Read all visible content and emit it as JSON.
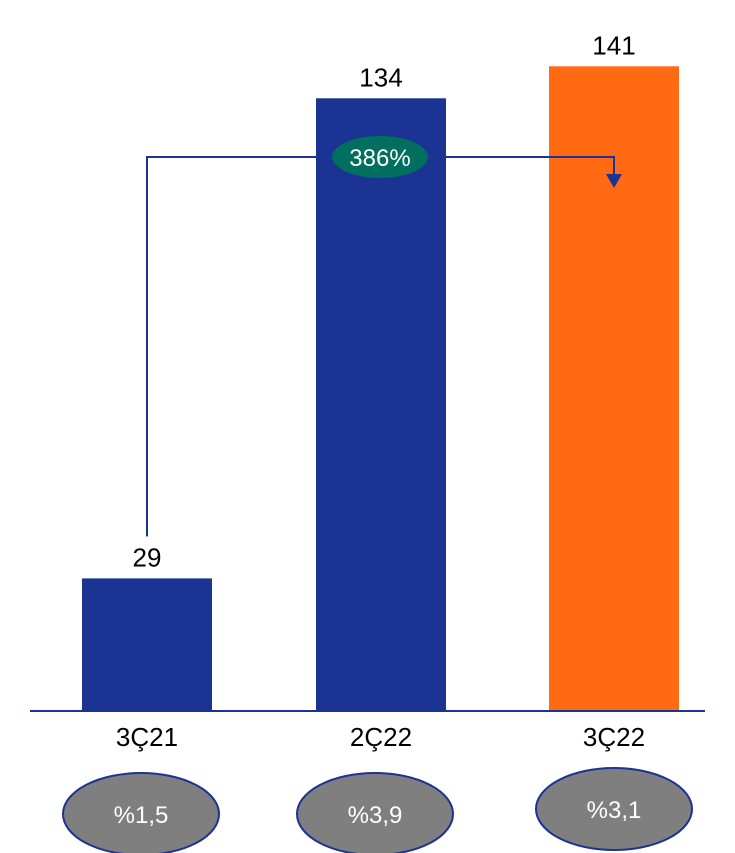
{
  "chart_data": {
    "type": "bar",
    "categories": [
      "3Ç21",
      "2Ç22",
      "3Ç22"
    ],
    "values": [
      29,
      134,
      141
    ],
    "value_labels": [
      "29",
      "134",
      "141"
    ],
    "bar_colors": [
      "#1b3393",
      "#1b3393",
      "#ff6a13"
    ],
    "ratio_labels": [
      "%1,5",
      "%3,9",
      "%3,1"
    ],
    "ratio_oval_color": "#7f7f7f",
    "ratio_oval_border": "#1b3393",
    "growth": {
      "label": "386%",
      "from": "3Ç21",
      "to": "3Ç22",
      "color": "#006f5f"
    },
    "ylim": [
      0,
      145
    ],
    "title": "",
    "xlabel": "",
    "ylabel": ""
  }
}
